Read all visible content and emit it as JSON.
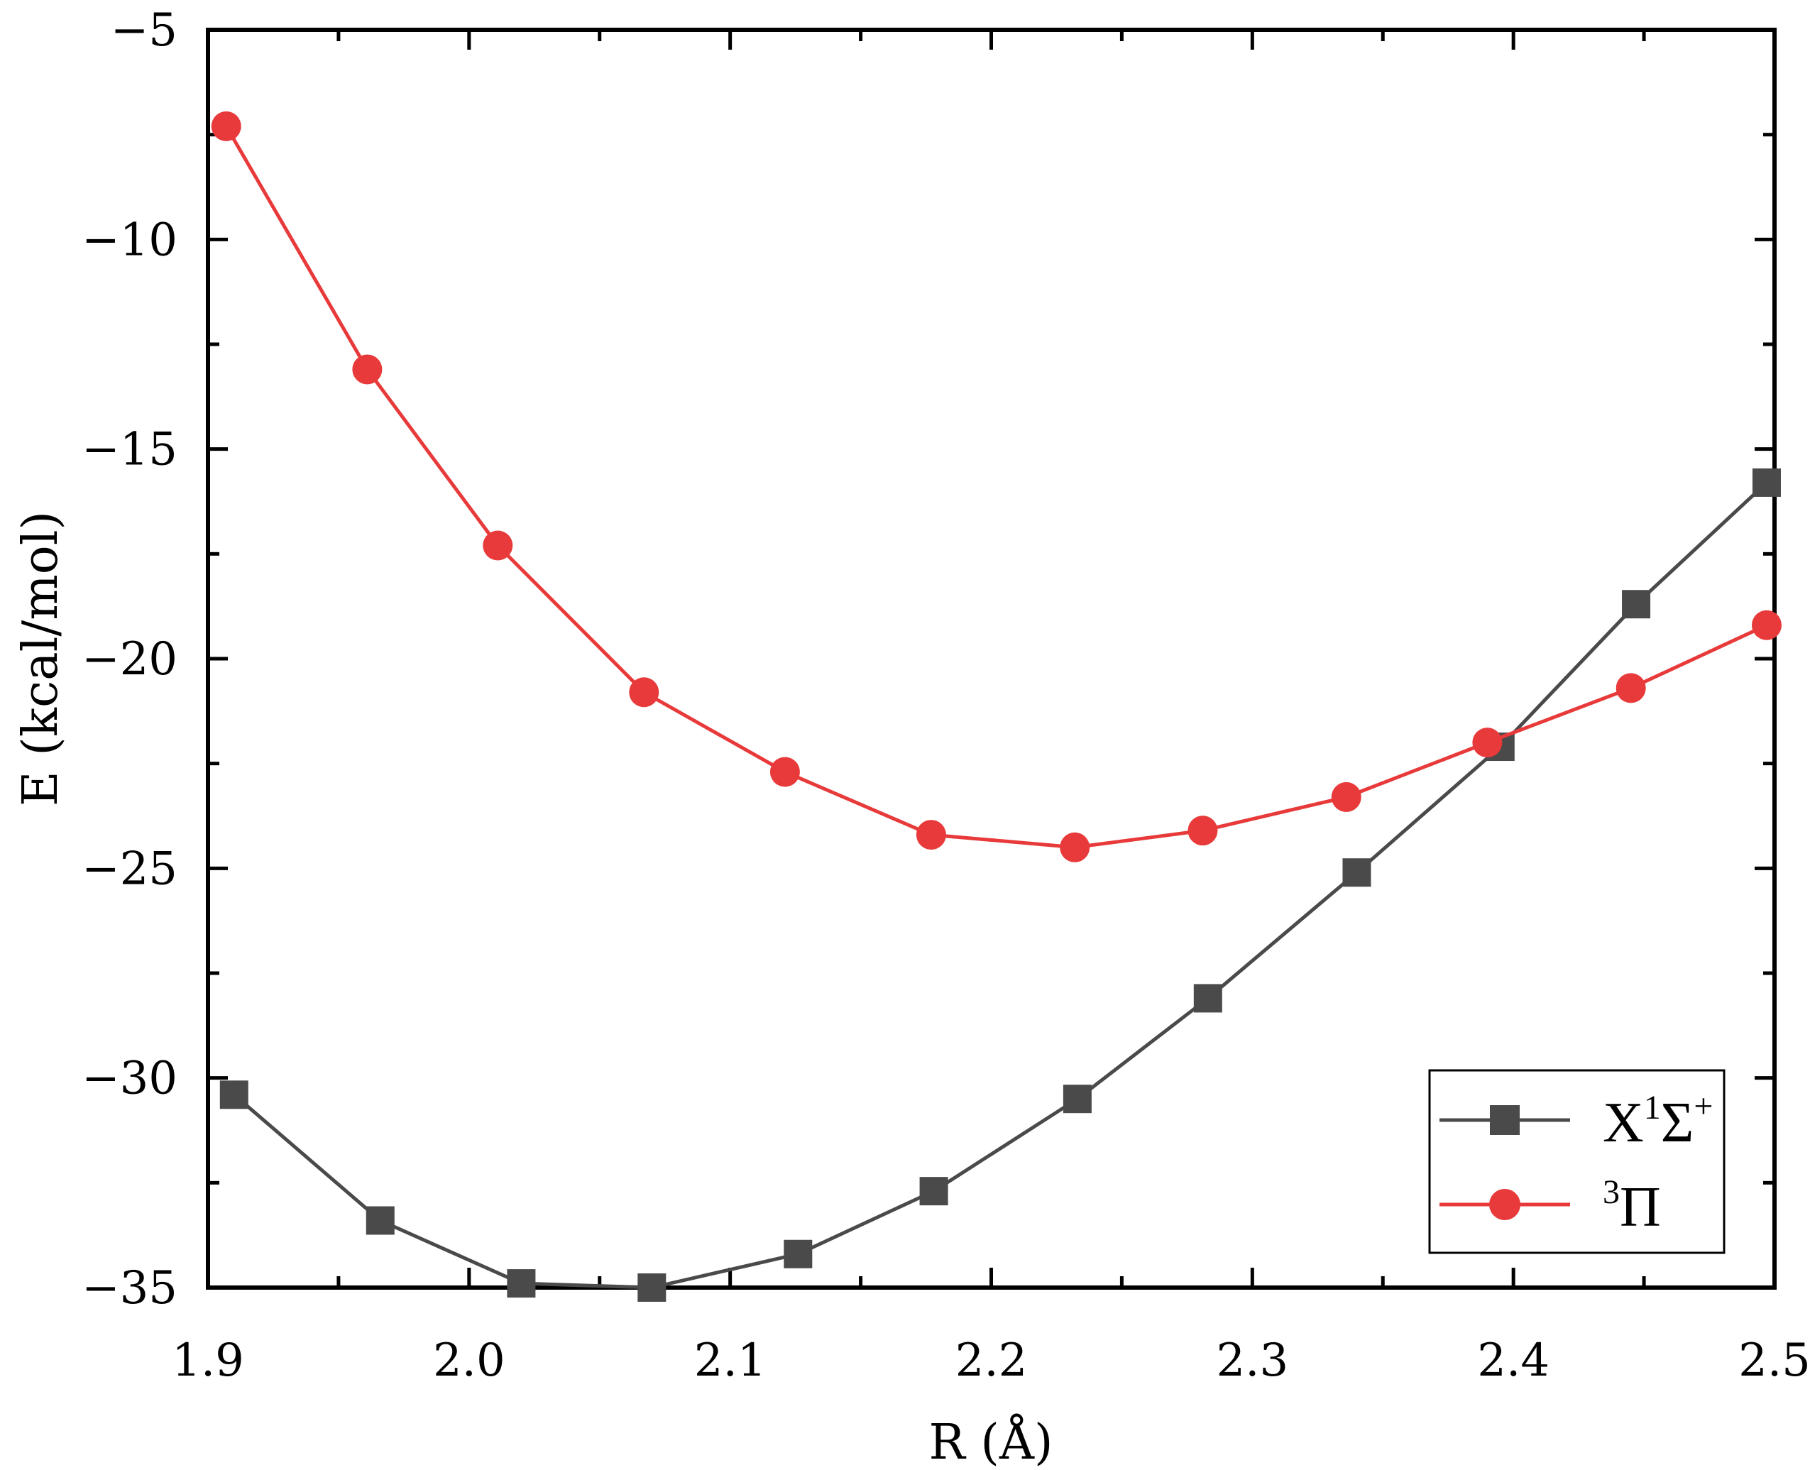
{
  "chart_data": {
    "type": "line",
    "xlabel": "R (Å)",
    "ylabel": "E (kcal/mol)",
    "xlim": [
      1.9,
      2.5
    ],
    "ylim": [
      -35,
      -5
    ],
    "xticks": [
      "1.9",
      "2.0",
      "2.1",
      "2.2",
      "2.3",
      "2.4",
      "2.5"
    ],
    "xtick_values": [
      1.9,
      2.0,
      2.1,
      2.2,
      2.3,
      2.4,
      2.5
    ],
    "yticks": [
      "−5",
      "−10",
      "−15",
      "−20",
      "−25",
      "−30",
      "−35"
    ],
    "ytick_values": [
      -5,
      -10,
      -15,
      -20,
      -25,
      -30,
      -35
    ],
    "grid": false,
    "legend_position": "bottom-right",
    "series": [
      {
        "name": "X¹Σ⁺",
        "name_base": "X",
        "name_sup1": "1",
        "name_mid": "Σ",
        "name_sup2": "+",
        "color": "#4a4a4a",
        "marker": "square",
        "x": [
          1.91,
          1.966,
          2.02,
          2.07,
          2.126,
          2.178,
          2.233,
          2.283,
          2.34,
          2.395,
          2.447,
          2.497
        ],
        "y": [
          -30.4,
          -33.4,
          -34.9,
          -35.0,
          -34.2,
          -32.7,
          -30.5,
          -28.1,
          -25.1,
          -22.1,
          -18.7,
          -15.8
        ]
      },
      {
        "name": "³Π",
        "name_pre_sup": "3",
        "name_base": "Π",
        "color": "#e83a3a",
        "marker": "circle",
        "x": [
          1.907,
          1.961,
          2.011,
          2.067,
          2.121,
          2.177,
          2.232,
          2.281,
          2.336,
          2.39,
          2.445,
          2.497
        ],
        "y": [
          -7.3,
          -13.1,
          -17.3,
          -20.8,
          -22.7,
          -24.2,
          -24.5,
          -24.1,
          -23.3,
          -22.0,
          -20.7,
          -19.2
        ]
      }
    ]
  }
}
